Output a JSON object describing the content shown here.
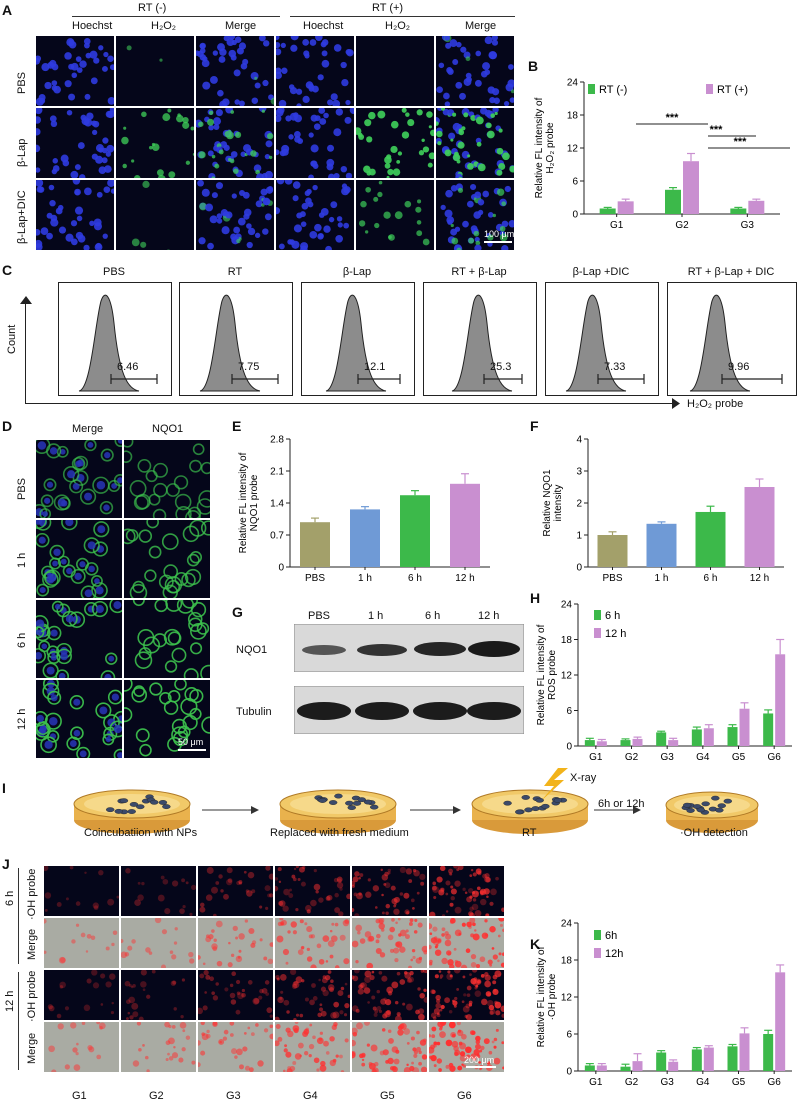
{
  "letters": {
    "A": "A",
    "B": "B",
    "C": "C",
    "D": "D",
    "E": "E",
    "F": "F",
    "G": "G",
    "H": "H",
    "I": "I",
    "J": "J",
    "K": "K"
  },
  "panelA": {
    "group_left": "RT (-)",
    "group_right": "RT (+)",
    "cols": [
      "Hoechst",
      "H₂O₂",
      "Merge",
      "Hoechst",
      "H₂O₂",
      "Merge"
    ],
    "rows": [
      "PBS",
      "β-Lap",
      "β-Lap+DIC"
    ],
    "scalebar": "100 μm",
    "colors": {
      "nucleus": "#2a36d6",
      "signal": "#3fbf5a",
      "bg": "#05061a"
    }
  },
  "panelC": {
    "titles": [
      "PBS",
      "RT",
      "β-Lap",
      "RT +  β-Lap",
      "β-Lap  +DIC",
      "RT +  β-Lap  + DIC"
    ],
    "values": [
      "6.46",
      "7.75",
      "12.1",
      "25.3",
      "7.33",
      "9.96"
    ],
    "yaxis": "Count",
    "xaxis": "H₂O₂ probe"
  },
  "panelD": {
    "cols": [
      "Merge",
      "NQO1"
    ],
    "rows": [
      "PBS",
      "1 h",
      "6 h",
      "12 h"
    ],
    "scalebar": "50 μm"
  },
  "panelG": {
    "cols": [
      "PBS",
      "1 h",
      "6 h",
      "12 h"
    ],
    "rows": [
      "NQO1",
      "Tubulin"
    ]
  },
  "panelI": {
    "steps": [
      "Coincubatiion with NPs",
      "Replaced with fresh medium",
      "RT",
      "·OH detection"
    ],
    "xray": "X-ray",
    "arrow_label": "6h or 12h"
  },
  "panelJ": {
    "groups": [
      "6 h",
      "12 h"
    ],
    "rows": [
      "·OH probe",
      "Merge",
      "·OH probe",
      "Merge"
    ],
    "cols": [
      "G1",
      "G2",
      "G3",
      "G4",
      "G5",
      "G6"
    ],
    "scalebar": "200 μm"
  },
  "chart_data": [
    {
      "id": "B",
      "type": "bar",
      "categories": [
        "G1",
        "G2",
        "G3"
      ],
      "series": [
        {
          "name": "RT (-)",
          "values": [
            1.0,
            4.4,
            1.0
          ],
          "err": [
            0.2,
            0.4,
            0.2
          ],
          "color": "#3cb94a"
        },
        {
          "name": "RT (+)",
          "values": [
            2.3,
            9.6,
            2.4
          ],
          "err": [
            0.4,
            1.4,
            0.3
          ],
          "color": "#c98fd0"
        }
      ],
      "ylabel": "Relative FL intensity of H₂O₂ probe",
      "ylim": [
        0,
        24
      ],
      "yticks": [
        0,
        6,
        12,
        18,
        24
      ],
      "legend": "top",
      "sig": [
        "***",
        "***",
        "***"
      ]
    },
    {
      "id": "E",
      "type": "bar",
      "categories": [
        "PBS",
        "1 h",
        "6 h",
        "12 h"
      ],
      "series": [
        {
          "values": [
            0.98,
            1.26,
            1.57,
            1.82
          ],
          "err": [
            0.09,
            0.06,
            0.1,
            0.22
          ],
          "colors": [
            "#a3a06a",
            "#6f9ad6",
            "#3cb94a",
            "#c98fd0"
          ]
        }
      ],
      "ylabel": "Relative FL intensity of NQO1 probe",
      "ylim": [
        0,
        2.8
      ],
      "yticks": [
        0,
        0.7,
        1.4,
        2.1,
        2.8
      ]
    },
    {
      "id": "F",
      "type": "bar",
      "categories": [
        "PBS",
        "1 h",
        "6 h",
        "12 h"
      ],
      "series": [
        {
          "values": [
            1.0,
            1.35,
            1.72,
            2.5
          ],
          "err": [
            0.1,
            0.06,
            0.18,
            0.25
          ],
          "colors": [
            "#a3a06a",
            "#6f9ad6",
            "#3cb94a",
            "#c98fd0"
          ]
        }
      ],
      "ylabel": "Relative NQO1 intensity",
      "ylim": [
        0,
        4
      ],
      "yticks": [
        0,
        1,
        2,
        3,
        4
      ]
    },
    {
      "id": "H",
      "type": "bar",
      "categories": [
        "G1",
        "G2",
        "G3",
        "G4",
        "G5",
        "G6"
      ],
      "series": [
        {
          "name": "6 h",
          "values": [
            1.0,
            1.0,
            2.3,
            2.8,
            3.2,
            5.5
          ],
          "err": [
            0.3,
            0.2,
            0.2,
            0.4,
            0.4,
            0.6
          ],
          "color": "#3cb94a"
        },
        {
          "name": "12 h",
          "values": [
            0.8,
            1.2,
            1.0,
            3.0,
            6.3,
            15.5
          ],
          "err": [
            0.3,
            0.3,
            0.3,
            0.6,
            1.0,
            2.5
          ],
          "color": "#c98fd0"
        }
      ],
      "ylabel": "Relative FL intensity of ROS probe",
      "ylim": [
        0,
        24
      ],
      "yticks": [
        0,
        6,
        12,
        18,
        24
      ],
      "legend": "top-left"
    },
    {
      "id": "K",
      "type": "bar",
      "categories": [
        "G1",
        "G2",
        "G3",
        "G4",
        "G5",
        "G6"
      ],
      "series": [
        {
          "name": "6h",
          "values": [
            0.9,
            0.7,
            3.0,
            3.5,
            4.0,
            6.0
          ],
          "err": [
            0.3,
            0.4,
            0.3,
            0.3,
            0.3,
            0.6
          ],
          "color": "#3cb94a"
        },
        {
          "name": "12h",
          "values": [
            0.9,
            1.6,
            1.5,
            3.8,
            6.1,
            16.0
          ],
          "err": [
            0.3,
            1.2,
            0.3,
            0.3,
            0.9,
            1.2
          ],
          "color": "#c98fd0"
        }
      ],
      "ylabel": "Relative FL intensity of ·OH probe",
      "ylim": [
        0,
        24
      ],
      "yticks": [
        0,
        6,
        12,
        18,
        24
      ],
      "legend": "top-left"
    }
  ]
}
